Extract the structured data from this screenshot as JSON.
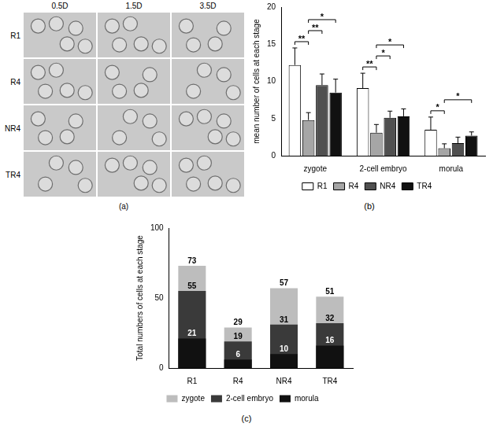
{
  "image_panel": {
    "caption": "(a)",
    "columns": [
      "0.5D",
      "1.5D",
      "3.5D"
    ],
    "rows": [
      "R1",
      "R4",
      "NR4",
      "TR4"
    ]
  },
  "chart_data": [
    {
      "type": "bar",
      "caption": "(b)",
      "ylabel": "mean number of cells at each stage",
      "categories": [
        "zygote",
        "2-cell embryo",
        "morula"
      ],
      "series": [
        {
          "name": "R1",
          "color": "#ffffff",
          "values": [
            12.2,
            9.1,
            3.5
          ],
          "errors": [
            2.3,
            2.0,
            1.7
          ]
        },
        {
          "name": "R4",
          "color": "#a6a6a6",
          "values": [
            4.8,
            3.1,
            1.0
          ],
          "errors": [
            1.0,
            1.1,
            0.6
          ]
        },
        {
          "name": "NR4",
          "color": "#505050",
          "values": [
            9.5,
            5.1,
            1.7
          ],
          "errors": [
            1.5,
            0.9,
            0.8
          ]
        },
        {
          "name": "TR4",
          "color": "#111111",
          "values": [
            8.5,
            5.3,
            2.7
          ],
          "errors": [
            1.8,
            1.0,
            0.5
          ]
        }
      ],
      "ylim": [
        0,
        20
      ],
      "yticks": [
        0,
        5,
        10,
        15,
        20
      ],
      "grid": false,
      "legend": "bottom",
      "annotations": [
        {
          "text": "**",
          "category": "zygote",
          "series": [
            "R1",
            "R4"
          ]
        },
        {
          "text": "**",
          "category": "zygote",
          "series": [
            "R4",
            "NR4"
          ]
        },
        {
          "text": "*",
          "category": "zygote",
          "series": [
            "R4",
            "TR4"
          ]
        },
        {
          "text": "**",
          "category": "2-cell embryo",
          "series": [
            "R1",
            "R4"
          ]
        },
        {
          "text": "*",
          "category": "2-cell embryo",
          "series": [
            "R4",
            "NR4"
          ]
        },
        {
          "text": "*",
          "category": "2-cell embryo",
          "series": [
            "R4",
            "TR4"
          ]
        },
        {
          "text": "*",
          "category": "morula",
          "series": [
            "R1",
            "R4"
          ]
        },
        {
          "text": "*",
          "category": "morula",
          "series": [
            "R4",
            "TR4"
          ]
        }
      ]
    },
    {
      "type": "bar",
      "caption": "(c)",
      "ylabel": "Total numbers of cells at each stage",
      "categories": [
        "R1",
        "R4",
        "NR4",
        "TR4"
      ],
      "series": [
        {
          "name": "zygote",
          "color": "#bdbdbd",
          "values": [
            73,
            29,
            57,
            51
          ]
        },
        {
          "name": "2-cell embryo",
          "color": "#3a3a3a",
          "values": [
            55,
            19,
            31,
            32
          ]
        },
        {
          "name": "morula",
          "color": "#111111",
          "values": [
            21,
            6,
            10,
            16
          ]
        }
      ],
      "ylim": [
        0,
        100
      ],
      "yticks": [
        0,
        50,
        100
      ],
      "grid": false,
      "legend": "bottom",
      "data_labels": true
    }
  ]
}
